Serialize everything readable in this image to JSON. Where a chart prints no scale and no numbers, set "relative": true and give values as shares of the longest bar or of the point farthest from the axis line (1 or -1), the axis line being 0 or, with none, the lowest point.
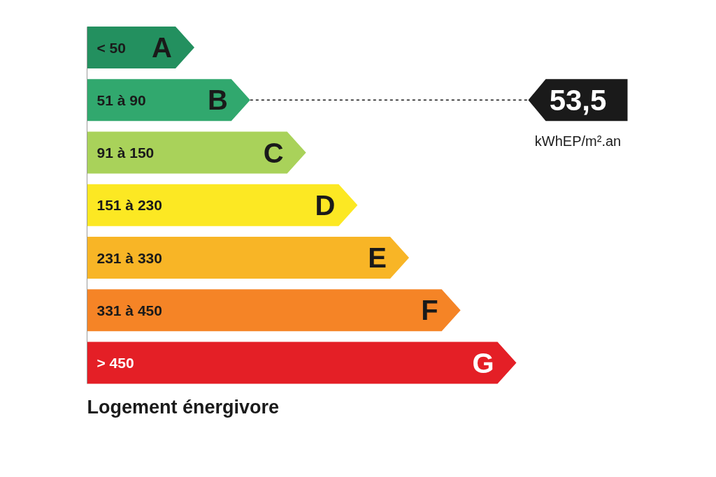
{
  "chart_data": {
    "type": "bar",
    "orientation": "horizontal",
    "relative": true,
    "categories": [
      "A",
      "B",
      "C",
      "D",
      "E",
      "F",
      "G"
    ],
    "values": [
      0.25,
      0.38,
      0.51,
      0.63,
      0.75,
      0.87,
      1
    ],
    "colors": [
      "#23905f",
      "#31a86e",
      "#a9d25a",
      "#fce823",
      "#f8b526",
      "#f58426",
      "#e41f26"
    ],
    "ref_lines": [
      {
        "axis": "y",
        "value": "B",
        "label": "53,5",
        "line_style": "dashed",
        "color": "#1a1a1a"
      }
    ],
    "annotations": [
      "< 50",
      "51 à 90",
      "91 à 150",
      "151 à 230",
      "231 à 330",
      "331 à 450",
      "> 450",
      "kWhEP/m².an",
      "Logement énergivore"
    ]
  }
}
